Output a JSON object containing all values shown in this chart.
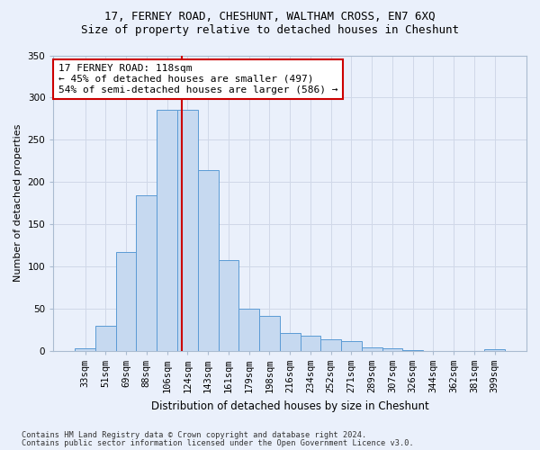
{
  "title1": "17, FERNEY ROAD, CHESHUNT, WALTHAM CROSS, EN7 6XQ",
  "title2": "Size of property relative to detached houses in Cheshunt",
  "xlabel": "Distribution of detached houses by size in Cheshunt",
  "ylabel": "Number of detached properties",
  "categories": [
    "33sqm",
    "51sqm",
    "69sqm",
    "88sqm",
    "106sqm",
    "124sqm",
    "143sqm",
    "161sqm",
    "179sqm",
    "198sqm",
    "216sqm",
    "234sqm",
    "252sqm",
    "271sqm",
    "289sqm",
    "307sqm",
    "326sqm",
    "344sqm",
    "362sqm",
    "381sqm",
    "399sqm"
  ],
  "values": [
    3,
    30,
    117,
    184,
    286,
    286,
    214,
    107,
    50,
    41,
    21,
    18,
    14,
    11,
    4,
    3,
    1,
    0,
    0,
    0,
    2
  ],
  "bar_color": "#c6d9f0",
  "bar_edge_color": "#5b9bd5",
  "grid_color": "#d0d8e8",
  "bg_color": "#eaf0fb",
  "vline_x": 4.72,
  "vline_color": "#cc0000",
  "annotation_text": "17 FERNEY ROAD: 118sqm\n← 45% of detached houses are smaller (497)\n54% of semi-detached houses are larger (586) →",
  "annotation_box_color": "#ffffff",
  "annotation_box_edge": "#cc0000",
  "footnote1": "Contains HM Land Registry data © Crown copyright and database right 2024.",
  "footnote2": "Contains public sector information licensed under the Open Government Licence v3.0.",
  "ylim": [
    0,
    350
  ],
  "yticks": [
    0,
    50,
    100,
    150,
    200,
    250,
    300,
    350
  ],
  "title1_fontsize": 9,
  "title2_fontsize": 9,
  "axis_fontsize": 8,
  "tick_fontsize": 7.5,
  "annot_fontsize": 8
}
